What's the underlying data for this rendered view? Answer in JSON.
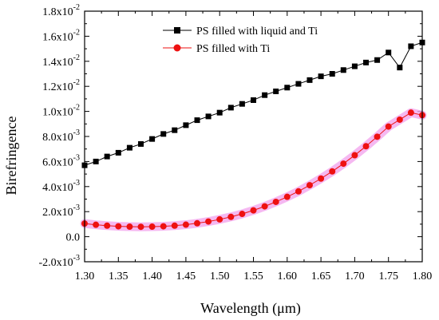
{
  "chart_data": {
    "type": "line",
    "xlabel": "Wavelength (μm)",
    "ylabel": "Birefringence",
    "xlim": [
      1.3,
      1.8
    ],
    "ylim": [
      -0.002,
      0.018
    ],
    "x_ticks": [
      "1.30",
      "1.35",
      "1.40",
      "1.45",
      "1.50",
      "1.55",
      "1.60",
      "1.65",
      "1.70",
      "1.75",
      "1.80"
    ],
    "y_ticks": [
      {
        "value": -0.002,
        "mant": "-2.0x10",
        "exp": "-3"
      },
      {
        "value": 0.0,
        "mant": "0.0",
        "exp": ""
      },
      {
        "value": 0.002,
        "mant": "2.0x10",
        "exp": "-3"
      },
      {
        "value": 0.004,
        "mant": "4.0x10",
        "exp": "-3"
      },
      {
        "value": 0.006,
        "mant": "6.0x10",
        "exp": "-3"
      },
      {
        "value": 0.008,
        "mant": "8.0x10",
        "exp": "-3"
      },
      {
        "value": 0.01,
        "mant": "1.0x10",
        "exp": "-2"
      },
      {
        "value": 0.012,
        "mant": "1.2x10",
        "exp": "-2"
      },
      {
        "value": 0.014,
        "mant": "1.4x10",
        "exp": "-2"
      },
      {
        "value": 0.016,
        "mant": "1.6x10",
        "exp": "-2"
      },
      {
        "value": 0.018,
        "mant": "1.8x10",
        "exp": "-2"
      }
    ],
    "legend_position": "top-center",
    "series": [
      {
        "name": "PS filled with liquid and Ti",
        "color": "#000000",
        "marker": "square",
        "x": [
          1.3,
          1.3167,
          1.3333,
          1.35,
          1.3667,
          1.3833,
          1.4,
          1.4167,
          1.4333,
          1.45,
          1.4667,
          1.4833,
          1.5,
          1.5167,
          1.5333,
          1.55,
          1.5667,
          1.5833,
          1.6,
          1.6167,
          1.6333,
          1.65,
          1.6667,
          1.6833,
          1.7,
          1.7167,
          1.7333,
          1.75,
          1.7667,
          1.7833,
          1.8
        ],
        "y": [
          0.0057,
          0.006,
          0.0064,
          0.0067,
          0.0071,
          0.0074,
          0.0078,
          0.0082,
          0.0085,
          0.0089,
          0.0093,
          0.0096,
          0.0099,
          0.0103,
          0.0106,
          0.0109,
          0.0113,
          0.0116,
          0.0119,
          0.0122,
          0.0125,
          0.0128,
          0.013,
          0.0133,
          0.0136,
          0.0139,
          0.0141,
          0.0147,
          0.0135,
          0.0152,
          0.0155
        ]
      },
      {
        "name": "PS filled with Ti",
        "color": "#ee1111",
        "marker": "circle",
        "x": [
          1.3,
          1.3167,
          1.3333,
          1.35,
          1.3667,
          1.3833,
          1.4,
          1.4167,
          1.4333,
          1.45,
          1.4667,
          1.4833,
          1.5,
          1.5167,
          1.5333,
          1.55,
          1.5667,
          1.5833,
          1.6,
          1.6167,
          1.6333,
          1.65,
          1.6667,
          1.6833,
          1.7,
          1.7167,
          1.7333,
          1.75,
          1.7667,
          1.7833,
          1.8
        ],
        "y": [
          0.00105,
          0.00095,
          0.00088,
          0.00083,
          0.0008,
          0.00079,
          0.0008,
          0.00083,
          0.00088,
          0.00096,
          0.00107,
          0.00121,
          0.00138,
          0.00158,
          0.00182,
          0.0021,
          0.00242,
          0.00278,
          0.00318,
          0.00362,
          0.00411,
          0.00464,
          0.00521,
          0.00583,
          0.0065,
          0.00722,
          0.00798,
          0.00879,
          0.00934,
          0.0099,
          0.0097
        ]
      }
    ]
  }
}
